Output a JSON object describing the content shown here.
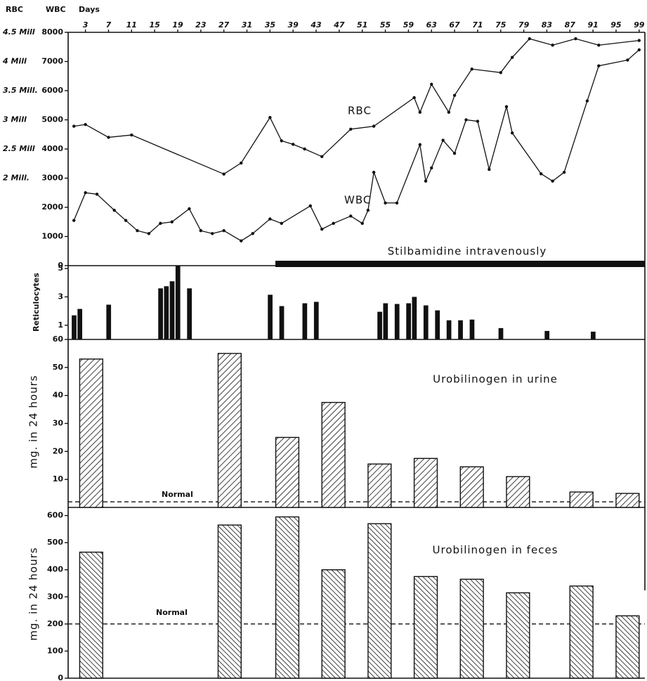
{
  "chart_data": [
    {
      "type": "line",
      "x_label": "Days",
      "y_label": "WBC",
      "y2_label": "RBC",
      "xlim": [
        0,
        100
      ],
      "xticks": [
        3,
        7,
        11,
        15,
        19,
        23,
        27,
        31,
        35,
        39,
        43,
        47,
        51,
        55,
        59,
        63,
        67,
        71,
        75,
        79,
        83,
        87,
        91,
        95,
        99
      ],
      "ylim": [
        0,
        8000
      ],
      "yticks": [
        0,
        1000,
        2000,
        3000,
        4000,
        5000,
        6000,
        7000,
        8000
      ],
      "y2lim": [
        0.5,
        4.5
      ],
      "y2ticks": [
        {
          "value": 2,
          "label": "2 Mill."
        },
        {
          "value": 2.5,
          "label": "2.5 Mill"
        },
        {
          "value": 3,
          "label": "3 Mill"
        },
        {
          "value": 3.5,
          "label": "3.5 Mill."
        },
        {
          "value": 4,
          "label": "4 Mill"
        },
        {
          "value": 4.5,
          "label": "4.5 Mill"
        }
      ],
      "annotations": [
        "Stilbamidine intravenously"
      ],
      "series": [
        {
          "name": "RBC",
          "axis": "y2",
          "color": "#111",
          "x": [
            1,
            3,
            7,
            11,
            27,
            30,
            35,
            37,
            39,
            41,
            44,
            49,
            53,
            60,
            61,
            63,
            66,
            67,
            70,
            75,
            77,
            80,
            84,
            88,
            92,
            99
          ],
          "values": [
            2.89,
            2.92,
            2.7,
            2.74,
            2.07,
            2.26,
            3.04,
            2.64,
            2.58,
            2.5,
            2.37,
            2.84,
            2.89,
            3.38,
            3.13,
            3.61,
            3.13,
            3.42,
            3.87,
            3.81,
            4.07,
            4.39,
            4.28,
            4.39,
            4.28,
            4.36
          ]
        },
        {
          "name": "WBC",
          "color": "#111",
          "x": [
            1,
            3,
            5,
            8,
            10,
            12,
            14,
            16,
            18,
            21,
            23,
            25,
            27,
            30,
            32,
            35,
            37,
            42,
            44,
            46,
            49,
            51,
            52,
            53,
            55,
            57,
            61,
            62,
            63,
            65,
            67,
            69,
            71,
            73,
            76,
            77,
            82,
            84,
            86,
            90,
            92,
            97,
            99
          ],
          "values": [
            1550,
            2500,
            2450,
            1900,
            1550,
            1200,
            1100,
            1450,
            1500,
            1950,
            1200,
            1100,
            1200,
            850,
            1100,
            1600,
            1450,
            2050,
            1250,
            1450,
            1700,
            1450,
            1900,
            3200,
            2150,
            2150,
            4150,
            2900,
            3350,
            4300,
            3850,
            5000,
            4950,
            3300,
            5450,
            4550,
            3150,
            2900,
            3200,
            5650,
            6850,
            7050,
            7400
          ]
        }
      ]
    },
    {
      "type": "bar",
      "y_label": "Reticulocytes",
      "color": "#111",
      "xlim": [
        0,
        100
      ],
      "ylim": [
        0,
        5.2
      ],
      "yticks": [
        1,
        3,
        5
      ],
      "x": [
        1,
        2,
        7,
        16,
        17,
        18,
        19,
        21,
        35,
        37,
        41,
        43,
        54,
        55,
        57,
        59,
        60,
        62,
        64,
        66,
        68,
        70,
        75,
        83,
        91
      ],
      "values": [
        1.7,
        2.15,
        2.45,
        3.6,
        3.75,
        4.1,
        5.2,
        3.6,
        3.15,
        2.35,
        2.55,
        2.65,
        1.95,
        2.55,
        2.5,
        2.55,
        3.0,
        2.4,
        2.05,
        1.35,
        1.35,
        1.4,
        0.8,
        0.6,
        0.55
      ]
    },
    {
      "type": "bar",
      "title": "Urobilinogen in urine",
      "y_label": "mg. in 24 hours",
      "color": "#111",
      "xlim": [
        0,
        100
      ],
      "ylim": [
        0,
        60
      ],
      "yticks": [
        10,
        20,
        30,
        40,
        50,
        60
      ],
      "reference": {
        "label": "Normal",
        "value": 2
      },
      "x": [
        4,
        28,
        38,
        46,
        54,
        62,
        70,
        78,
        89,
        97
      ],
      "values": [
        53,
        55,
        25,
        37.5,
        15.5,
        17.5,
        14.5,
        11,
        5.5,
        5
      ]
    },
    {
      "type": "bar",
      "title": "Urobilinogen in feces",
      "y_label": "mg. in 24 hours",
      "color": "#111",
      "xlim": [
        0,
        100
      ],
      "ylim": [
        0,
        630
      ],
      "yticks": [
        0,
        100,
        200,
        300,
        400,
        500,
        600
      ],
      "reference": {
        "label": "Normal",
        "value": 200
      },
      "x": [
        4,
        28,
        38,
        46,
        54,
        62,
        70,
        78,
        89,
        97
      ],
      "values": [
        465,
        565,
        595,
        400,
        570,
        375,
        365,
        315,
        340,
        230
      ]
    }
  ]
}
